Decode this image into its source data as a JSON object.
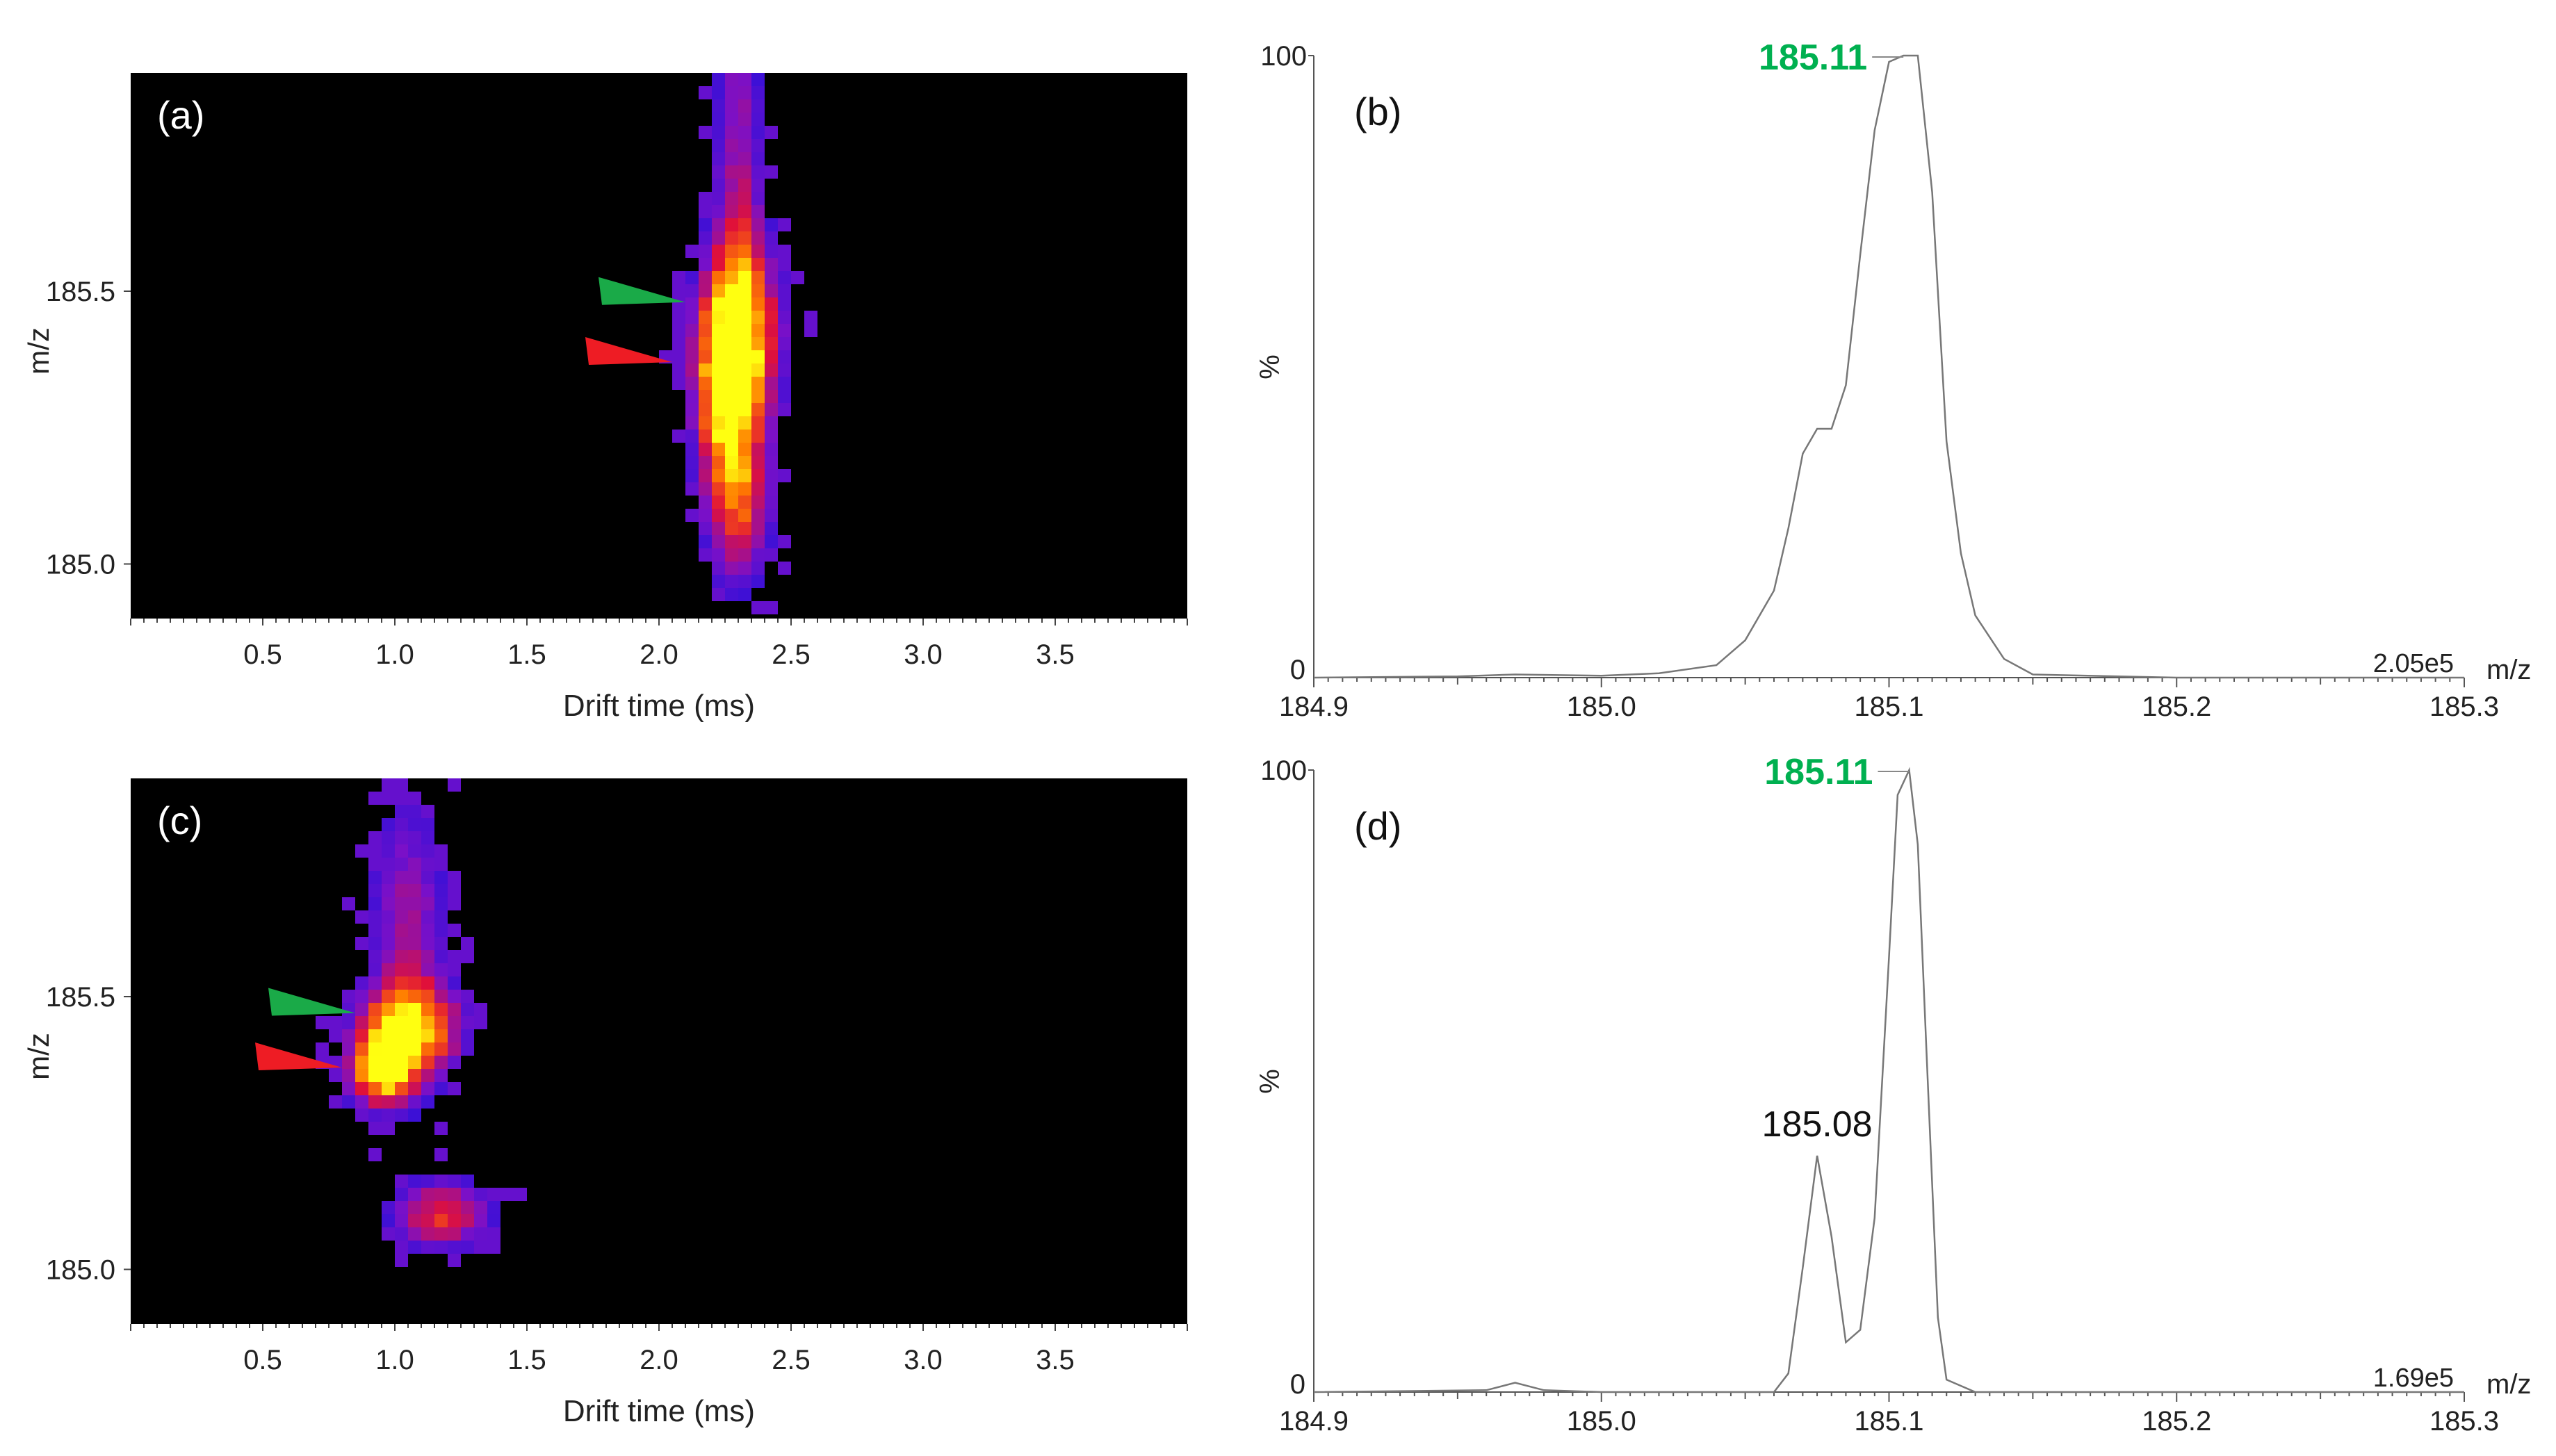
{
  "chart_data": [
    {
      "id": "a",
      "panel_label": "(a)",
      "type": "heatmap",
      "xlabel": "Drift time (ms)",
      "ylabel": "m/z",
      "xlim": [
        0,
        4.0
      ],
      "ylim": [
        184.9,
        185.9
      ],
      "x_ticks": [
        "0.5",
        "1.0",
        "1.5",
        "2.0",
        "2.5",
        "3.0",
        "3.5"
      ],
      "y_ticks": [
        "185.0",
        "185.5"
      ],
      "colormap": [
        "#000000",
        "#1010e0",
        "#7a10c8",
        "#e0103a",
        "#ff7a00",
        "#ffff10"
      ],
      "background": "#000000",
      "blobs": [
        {
          "x": 2.3,
          "y": 185.42,
          "sx": 0.1,
          "sy": 0.11,
          "peak": 1.0
        },
        {
          "x": 2.25,
          "y": 185.3,
          "sx": 0.07,
          "sy": 0.1,
          "peak": 0.75
        },
        {
          "x": 2.3,
          "y": 185.12,
          "sx": 0.08,
          "sy": 0.1,
          "peak": 0.6
        },
        {
          "x": 2.3,
          "y": 185.7,
          "sx": 0.06,
          "sy": 0.25,
          "peak": 0.35
        }
      ],
      "markers": [
        {
          "color": "#1aaa48",
          "tip_x": 2.1,
          "tip_y": 185.48,
          "target": "185.11"
        },
        {
          "color": "#ee1c24",
          "tip_x": 2.05,
          "tip_y": 185.37,
          "target": "185.08"
        }
      ]
    },
    {
      "id": "b",
      "panel_label": "(b)",
      "type": "line",
      "xlabel": "m/z",
      "ylabel": "%",
      "xlim": [
        184.9,
        185.3
      ],
      "ylim": [
        0,
        100
      ],
      "x_ticks": [
        "184.9",
        "185.0",
        "185.1",
        "185.2",
        "185.3"
      ],
      "y_ticks": [
        "0",
        "100"
      ],
      "intensity_label": "2.05e5",
      "peak_label": "185.11",
      "peak_label_color": "#00b050",
      "x": [
        184.9,
        184.95,
        184.97,
        185.0,
        185.02,
        185.04,
        185.05,
        185.06,
        185.065,
        185.07,
        185.075,
        185.08,
        185.085,
        185.09,
        185.095,
        185.1,
        185.105,
        185.11,
        185.115,
        185.12,
        185.125,
        185.13,
        185.14,
        185.15,
        185.2,
        185.3
      ],
      "values": [
        0,
        0.2,
        0.5,
        0.3,
        0.7,
        2,
        6,
        14,
        24,
        36,
        40,
        40,
        47,
        68,
        88,
        99,
        100,
        100,
        78,
        38,
        20,
        10,
        3,
        0.5,
        0,
        0
      ]
    },
    {
      "id": "c",
      "panel_label": "(c)",
      "type": "heatmap",
      "xlabel": "Drift time (ms)",
      "ylabel": "m/z",
      "xlim": [
        0,
        4.0
      ],
      "ylim": [
        184.9,
        185.9
      ],
      "x_ticks": [
        "0.5",
        "1.0",
        "1.5",
        "2.0",
        "2.5",
        "3.0",
        "3.5"
      ],
      "y_ticks": [
        "185.0",
        "185.5"
      ],
      "colormap": [
        "#000000",
        "#1010e0",
        "#7a10c8",
        "#e0103a",
        "#ff7a00",
        "#ffff10"
      ],
      "background": "#000000",
      "blobs": [
        {
          "x": 1.05,
          "y": 185.44,
          "sx": 0.12,
          "sy": 0.05,
          "peak": 1.0
        },
        {
          "x": 0.95,
          "y": 185.36,
          "sx": 0.08,
          "sy": 0.04,
          "peak": 0.95
        },
        {
          "x": 1.18,
          "y": 185.1,
          "sx": 0.12,
          "sy": 0.04,
          "peak": 0.55
        },
        {
          "x": 1.05,
          "y": 185.6,
          "sx": 0.1,
          "sy": 0.18,
          "peak": 0.35
        }
      ],
      "markers": [
        {
          "color": "#1aaa48",
          "tip_x": 0.85,
          "tip_y": 185.47,
          "target": "185.11"
        },
        {
          "color": "#ee1c24",
          "tip_x": 0.8,
          "tip_y": 185.37,
          "target": "185.08"
        }
      ]
    },
    {
      "id": "d",
      "panel_label": "(d)",
      "type": "line",
      "xlabel": "m/z",
      "ylabel": "%",
      "xlim": [
        184.9,
        185.3
      ],
      "ylim": [
        0,
        100
      ],
      "x_ticks": [
        "184.9",
        "185.0",
        "185.1",
        "185.2",
        "185.3"
      ],
      "y_ticks": [
        "0",
        "100"
      ],
      "intensity_label": "1.69e5",
      "peak_label": "185.11",
      "peak_label_color": "#00b050",
      "secondary_label": "185.08",
      "x": [
        184.9,
        184.96,
        184.97,
        184.98,
        185.0,
        185.06,
        185.065,
        185.07,
        185.075,
        185.08,
        185.085,
        185.09,
        185.095,
        185.1,
        185.103,
        185.107,
        185.11,
        185.113,
        185.117,
        185.12,
        185.13,
        185.2,
        185.3
      ],
      "values": [
        0,
        0.3,
        1.5,
        0.3,
        0,
        0,
        3,
        20,
        38,
        25,
        8,
        10,
        28,
        70,
        96,
        100,
        88,
        55,
        12,
        2,
        0,
        0,
        0
      ]
    }
  ]
}
